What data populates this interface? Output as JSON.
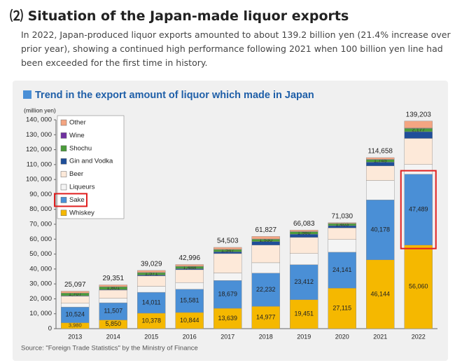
{
  "header": {
    "title": "⑵ Situation of the Japan-made liquor exports",
    "text": "In 2022, Japan-produced liquor exports amounted to about 139.2 billion yen (21.4% increase over prior year), showing a continued high performance following 2021 when 100 billion yen line had been exceeded for the first time in history."
  },
  "chart_data": {
    "type": "stacked-bar",
    "title": "Trend in the export amount of liquor which made in Japan",
    "y_label": "(million yen)",
    "source": "Source: \"Foreign Trade Statistics\" by the Ministry of Finance",
    "categories": [
      "2013",
      "2014",
      "2015",
      "2016",
      "2017",
      "2018",
      "2019",
      "2020",
      "2021",
      "2022"
    ],
    "ylim": [
      0,
      140000
    ],
    "yticks": [
      0,
      {
        "value": 10000,
        "label": "10, 000"
      },
      {
        "value": 20000,
        "label": "20, 000"
      },
      {
        "value": 30000,
        "label": "30, 000"
      },
      {
        "value": 40000,
        "label": "40, 000"
      },
      {
        "value": 50000,
        "label": "50, 000"
      },
      {
        "value": 60000,
        "label": "60, 000"
      },
      {
        "value": 70000,
        "label": "70, 000"
      },
      {
        "value": 80000,
        "label": "80, 000"
      },
      {
        "value": 90000,
        "label": "90, 000"
      },
      {
        "value": 100000,
        "label": "100, 000"
      },
      {
        "value": 110000,
        "label": "110, 000"
      },
      {
        "value": 120000,
        "label": "120, 000"
      },
      {
        "value": 130000,
        "label": "130, 000"
      },
      {
        "value": 140000,
        "label": "140, 000"
      }
    ],
    "series": [
      {
        "name": "Whiskey",
        "color": "#f5b800",
        "values": [
          3980,
          5850,
          10378,
          10844,
          13639,
          14977,
          19451,
          27115,
          46144,
          56060
        ],
        "value_labels": [
          "3,980",
          "5,850",
          "10,378",
          "10,844",
          "13,639",
          "14,977",
          "19,451",
          "27,115",
          "46,144",
          "56,060"
        ]
      },
      {
        "name": "Sake",
        "color": "#4a8fd6",
        "values": [
          10524,
          11507,
          14011,
          15581,
          18679,
          22232,
          23412,
          24141,
          40178,
          47489
        ],
        "value_labels": [
          "10,524",
          "11,507",
          "14,011",
          "15,581",
          "18,679",
          "22,232",
          "23,412",
          "24,141",
          "40,178",
          "47,489"
        ]
      },
      {
        "name": "Liqueurs",
        "color": "#f4f4f4",
        "values": [
          2500,
          3000,
          4000,
          4500,
          5000,
          7000,
          7500,
          8500,
          13000,
          6500
        ]
      },
      {
        "name": "Beer",
        "color": "#fde9d9",
        "values": [
          4800,
          5500,
          7000,
          8600,
          13000,
          11800,
          10800,
          7800,
          9800,
          17500
        ]
      },
      {
        "name": "Gin and Vodka",
        "color": "#1f4e99",
        "values": [
          300,
          400,
          600,
          700,
          1200,
          2400,
          2200,
          1500,
          2500,
          4500
        ]
      },
      {
        "name": "Shochu",
        "color": "#4a9b3a",
        "values": [
          1707,
          1801,
          1571,
          1488,
          1547,
          1530,
          1560,
          1403,
          1745,
          2177
        ],
        "value_labels": [
          "1,707",
          "1,801",
          "1,571",
          "1,488",
          "1,547",
          "1,530",
          "1,560",
          "1,403",
          "1,745",
          "2,177"
        ]
      },
      {
        "name": "Wine",
        "color": "#7030a0",
        "values": [
          100,
          100,
          150,
          150,
          150,
          200,
          200,
          150,
          200,
          300
        ]
      },
      {
        "name": "Other",
        "color": "#f4a582",
        "values": [
          1186,
          1193,
          1319,
          1133,
          1288,
          1688,
          960,
          421,
          1091,
          4677
        ]
      }
    ],
    "totals": {
      "values": [
        25097,
        29351,
        39029,
        42996,
        54503,
        61827,
        66083,
        71030,
        114658,
        139203
      ],
      "value_labels": [
        "25,097",
        "29,351",
        "39,029",
        "42,996",
        "54,503",
        "61,827",
        "66,083",
        "71,030",
        "114,658",
        "139,203"
      ]
    },
    "highlight_series": "Sake",
    "highlight_category": "2022",
    "highlight_color": "#e02020"
  }
}
